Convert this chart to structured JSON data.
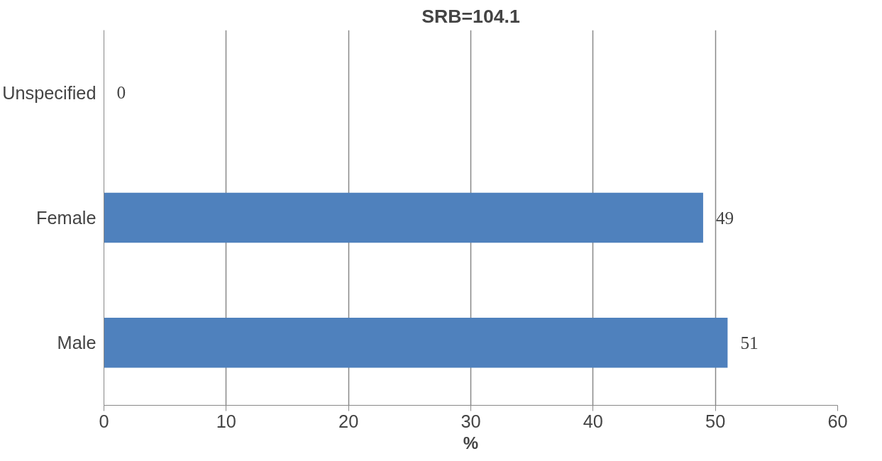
{
  "chart_data": {
    "type": "bar",
    "orientation": "horizontal",
    "title": "SRB=104.1",
    "xlabel": "%",
    "categories": [
      "Unspecified",
      "Female",
      "Male"
    ],
    "values": [
      0,
      49,
      51
    ],
    "color": "#4f81bd",
    "xlim": [
      0,
      60
    ],
    "xticks": [
      0,
      10,
      20,
      30,
      40,
      50,
      60
    ],
    "grid": "x",
    "data_labels": true
  }
}
